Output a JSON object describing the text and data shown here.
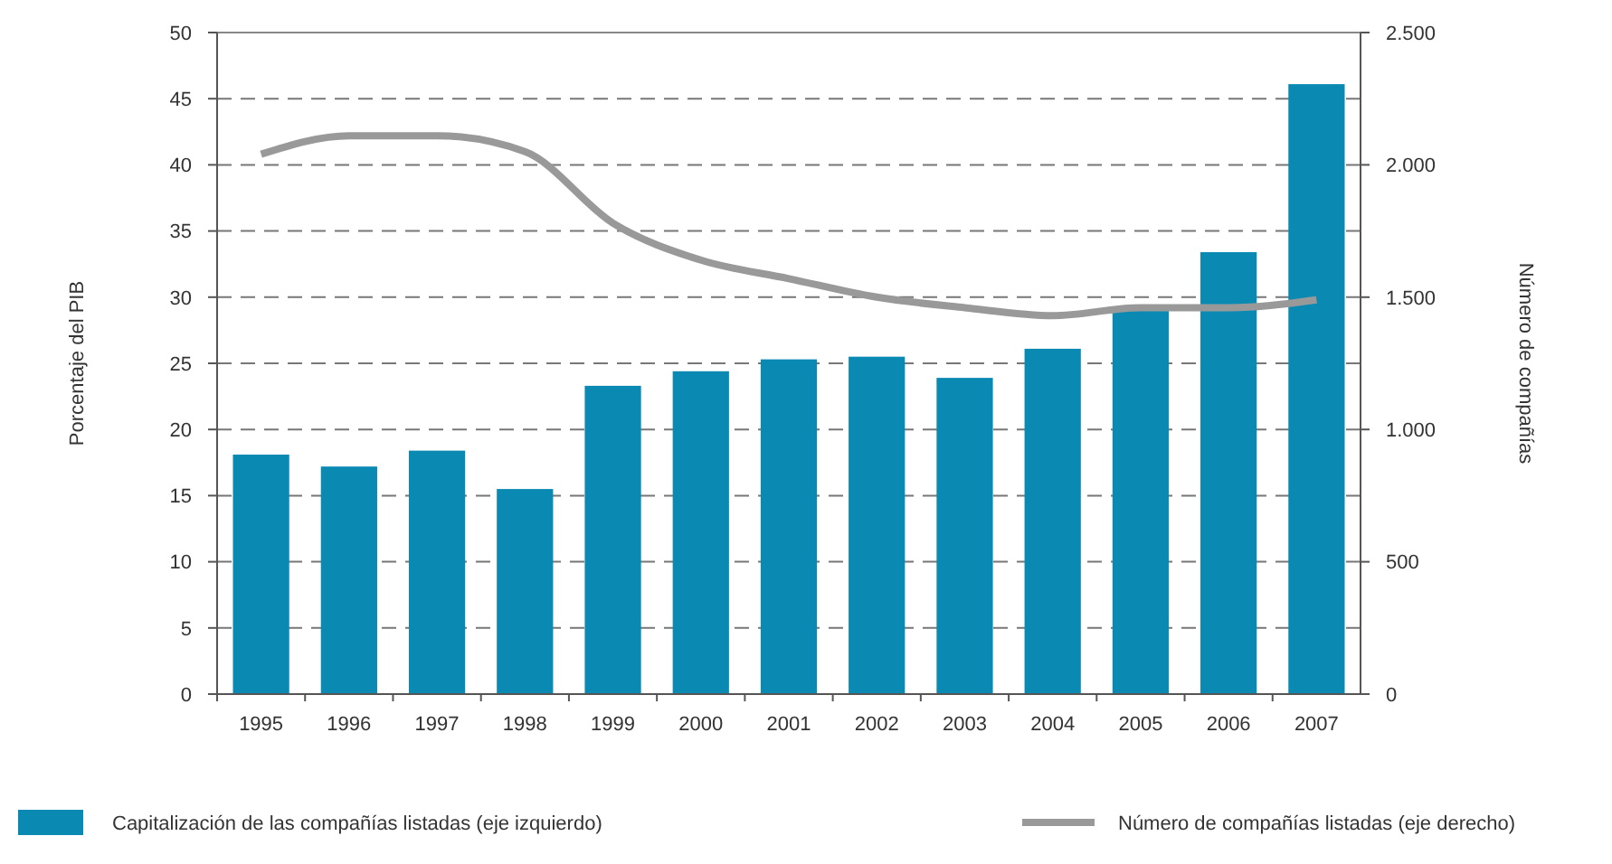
{
  "chart_data": {
    "type": "bar",
    "categories": [
      "1995",
      "1996",
      "1997",
      "1998",
      "1999",
      "2000",
      "2001",
      "2002",
      "2003",
      "2004",
      "2005",
      "2006",
      "2007"
    ],
    "series": [
      {
        "name": "Capitalización de las compañías listadas (eje izquierdo)",
        "color": "#0a8ab3",
        "values": [
          18.1,
          17.2,
          18.4,
          15.5,
          23.3,
          24.4,
          25.3,
          25.5,
          23.9,
          26.1,
          29.0,
          33.4,
          46.1
        ]
      },
      {
        "name": "Número de compañías listadas (eje derecho)",
        "type": "line",
        "axis": "y2",
        "color": "#999999",
        "values": [
          2040,
          2110,
          2110,
          2050,
          1780,
          1640,
          1570,
          1500,
          1460,
          1430,
          1460,
          1460,
          1490
        ]
      }
    ],
    "ylabel": "Porcentaje del PIB",
    "y2label": "Número de compañías",
    "ylim": [
      0,
      50
    ],
    "yticks": [
      0,
      5,
      10,
      15,
      20,
      25,
      30,
      35,
      40,
      45,
      50
    ],
    "y2lim": [
      0,
      2500
    ],
    "y2ticks": [
      0,
      {
        "value": 500,
        "label": "500"
      },
      {
        "value": 1000,
        "label": "1.000"
      },
      {
        "value": 1500,
        "label": "1.500"
      },
      {
        "value": 2000,
        "label": "2.000"
      },
      {
        "value": 2500,
        "label": "2.500"
      }
    ],
    "grid": "y",
    "legend": "bottom",
    "line_style": "solid",
    "marker": "none"
  }
}
